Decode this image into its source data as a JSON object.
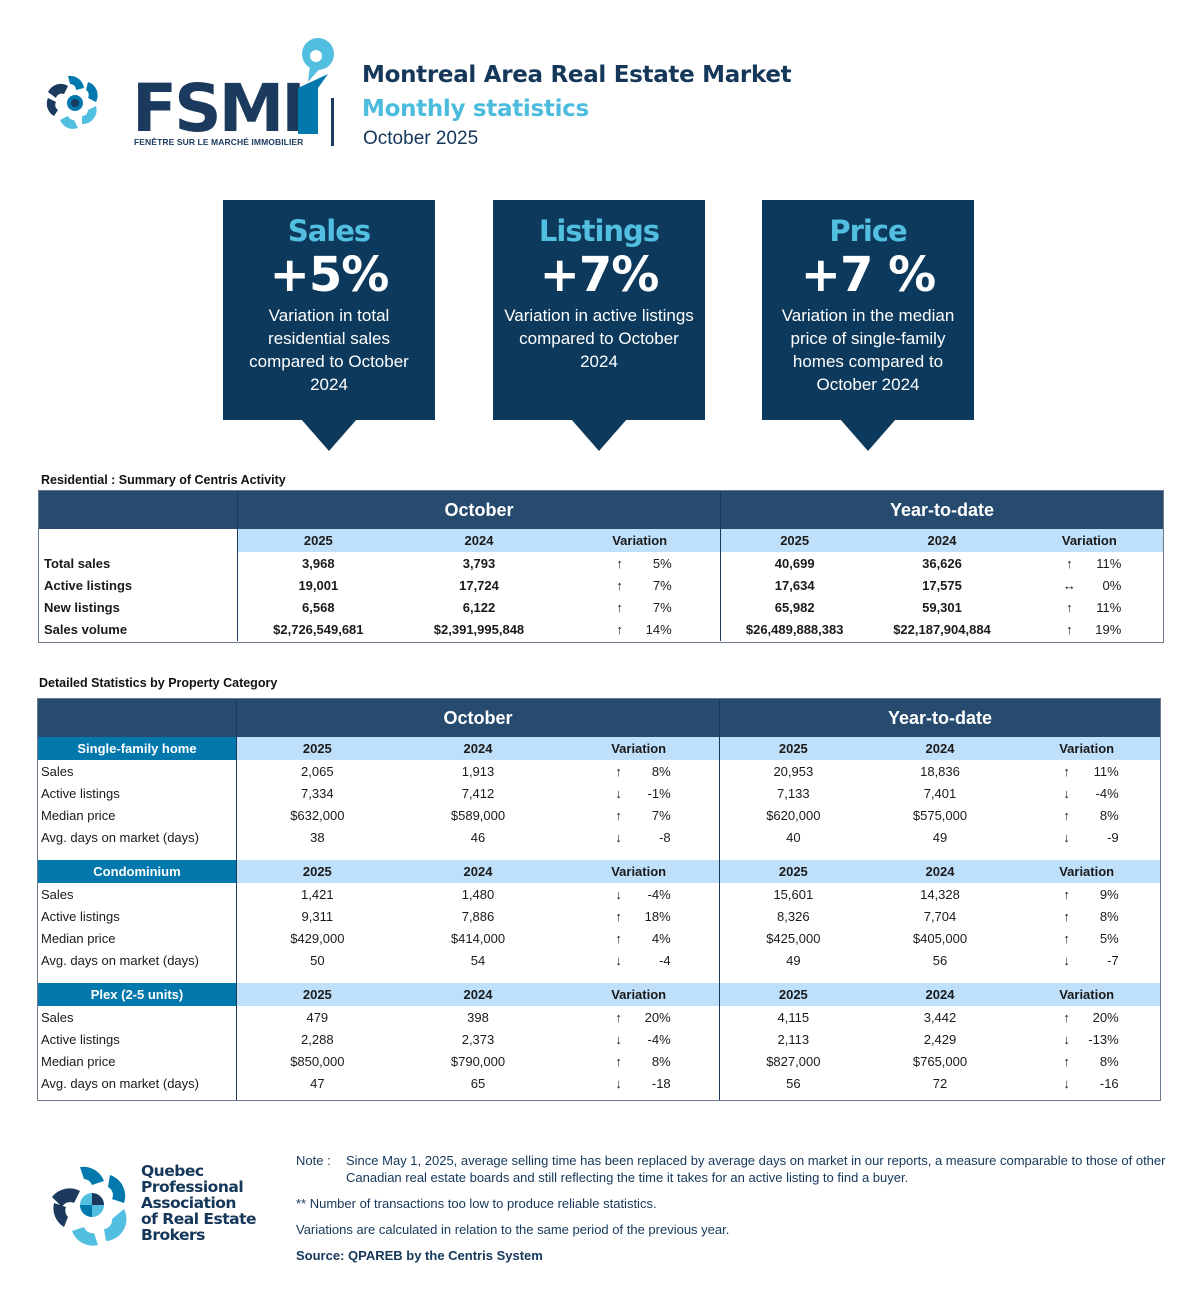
{
  "header": {
    "fsmi_logo_text": "FSMI",
    "fsmi_logo_subtitle": "FENÊTRE SUR LE MARCHÉ IMMOBILIER",
    "title": "Montreal Area Real Estate Market",
    "subtitle": "Monthly statistics",
    "period": "October 2025"
  },
  "kpis": [
    {
      "title": "Sales",
      "value": "+5%",
      "description": "Variation in total residential sales compared to October 2024"
    },
    {
      "title": "Listings",
      "value": "+7%",
      "description": "Variation in active listings compared to October 2024"
    },
    {
      "title": "Price",
      "value": "+7 %",
      "description": "Variation in the median price of single-family homes compared to October 2024"
    }
  ],
  "summary": {
    "section_label": "Residential : Summary of Centris Activity",
    "period_headers": [
      "October",
      "Year-to-date"
    ],
    "columns": [
      "2025",
      "2024",
      "Variation"
    ],
    "rows": [
      {
        "label": "Total sales",
        "oct": [
          "3,968",
          "3,793",
          "↑",
          "5%"
        ],
        "ytd": [
          "40,699",
          "36,626",
          "↑",
          "11%"
        ]
      },
      {
        "label": "Active listings",
        "oct": [
          "19,001",
          "17,724",
          "↑",
          "7%"
        ],
        "ytd": [
          "17,634",
          "17,575",
          "↔",
          "0%"
        ]
      },
      {
        "label": "New listings",
        "oct": [
          "6,568",
          "6,122",
          "↑",
          "7%"
        ],
        "ytd": [
          "65,982",
          "59,301",
          "↑",
          "11%"
        ]
      },
      {
        "label": "Sales volume",
        "oct": [
          "$2,726,549,681",
          "$2,391,995,848",
          "↑",
          "14%"
        ],
        "ytd": [
          "$26,489,888,383",
          "$22,187,904,884",
          "↑",
          "19%"
        ]
      }
    ]
  },
  "detailed": {
    "section_label": "Detailed Statistics by Property Category",
    "period_headers": [
      "October",
      "Year-to-date"
    ],
    "columns": [
      "2025",
      "2024",
      "Variation"
    ],
    "categories": [
      {
        "name": "Single-family home",
        "rows": [
          {
            "label": "Sales",
            "oct": [
              "2,065",
              "1,913",
              "↑",
              "8%"
            ],
            "ytd": [
              "20,953",
              "18,836",
              "↑",
              "11%"
            ]
          },
          {
            "label": "Active listings",
            "oct": [
              "7,334",
              "7,412",
              "↓",
              "-1%"
            ],
            "ytd": [
              "7,133",
              "7,401",
              "↓",
              "-4%"
            ]
          },
          {
            "label": "Median price",
            "oct": [
              "$632,000",
              "$589,000",
              "↑",
              "7%"
            ],
            "ytd": [
              "$620,000",
              "$575,000",
              "↑",
              "8%"
            ]
          },
          {
            "label": "Avg. days on market (days)",
            "oct": [
              "38",
              "46",
              "↓",
              "-8"
            ],
            "ytd": [
              "40",
              "49",
              "↓",
              "-9"
            ]
          }
        ]
      },
      {
        "name": "Condominium",
        "rows": [
          {
            "label": "Sales",
            "oct": [
              "1,421",
              "1,480",
              "↓",
              "-4%"
            ],
            "ytd": [
              "15,601",
              "14,328",
              "↑",
              "9%"
            ]
          },
          {
            "label": "Active listings",
            "oct": [
              "9,311",
              "7,886",
              "↑",
              "18%"
            ],
            "ytd": [
              "8,326",
              "7,704",
              "↑",
              "8%"
            ]
          },
          {
            "label": "Median price",
            "oct": [
              "$429,000",
              "$414,000",
              "↑",
              "4%"
            ],
            "ytd": [
              "$425,000",
              "$405,000",
              "↑",
              "5%"
            ]
          },
          {
            "label": "Avg. days on market (days)",
            "oct": [
              "50",
              "54",
              "↓",
              "-4"
            ],
            "ytd": [
              "49",
              "56",
              "↓",
              "-7"
            ]
          }
        ]
      },
      {
        "name": "Plex (2-5 units)",
        "rows": [
          {
            "label": "Sales",
            "oct": [
              "479",
              "398",
              "↑",
              "20%"
            ],
            "ytd": [
              "4,115",
              "3,442",
              "↑",
              "20%"
            ]
          },
          {
            "label": "Active listings",
            "oct": [
              "2,288",
              "2,373",
              "↓",
              "-4%"
            ],
            "ytd": [
              "2,113",
              "2,429",
              "↓",
              "-13%"
            ]
          },
          {
            "label": "Median price",
            "oct": [
              "$850,000",
              "$790,000",
              "↑",
              "8%"
            ],
            "ytd": [
              "$827,000",
              "$765,000",
              "↑",
              "8%"
            ]
          },
          {
            "label": "Avg. days on market (days)",
            "oct": [
              "47",
              "65",
              "↓",
              "-18"
            ],
            "ytd": [
              "56",
              "72",
              "↓",
              "-16"
            ]
          }
        ]
      }
    ]
  },
  "footer": {
    "org_name_lines": [
      "Quebec",
      "Professional",
      "Association",
      "of Real Estate",
      "Brokers"
    ],
    "note_tag": "Note :",
    "note_text": "Since May 1, 2025, average selling time has been replaced by average days on market in our reports, a measure comparable to those of other Canadian real estate boards and still reflecting the time it takes for an active listing to find a buyer.",
    "asterisk_note": "**  Number of transactions too low to produce reliable statistics.",
    "variation_note": "Variations are calculated in relation to the same period of the previous year.",
    "source": "Source: QPAREB by the Centris System"
  },
  "colors": {
    "navy": "#0d3a5c",
    "table_header": "#264b6e",
    "light_blue": "#52bfe0",
    "subheader_bg": "#bfe0fb",
    "category_bg": "#0378ac"
  }
}
